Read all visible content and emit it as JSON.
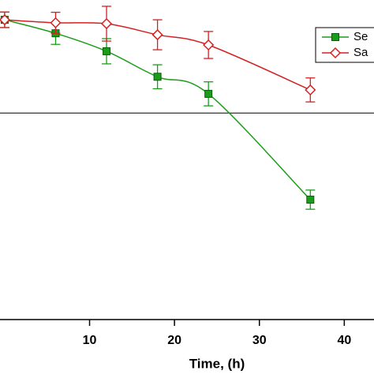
{
  "chart_data": {
    "type": "line",
    "x_label": "Time, (h)",
    "xlim": [
      -0.55,
      43.5
    ],
    "xticks": [
      10,
      20,
      30,
      40
    ],
    "ylim": [
      0,
      106.6
    ],
    "reference_line": 68.9,
    "legend": "top-right",
    "series": [
      {
        "name": "Se",
        "color": "#1a9e1a",
        "marker": "square",
        "x": [
          0,
          6,
          12,
          18,
          24,
          36
        ],
        "values": [
          100,
          95.5,
          89.5,
          81,
          75.3,
          40
        ],
        "errors": [
          2.6,
          3.7,
          4.2,
          4,
          4,
          3.2
        ]
      },
      {
        "name": "Sa",
        "color": "#d42020",
        "marker": "diamond",
        "x": [
          0,
          6,
          12,
          18,
          24,
          36
        ],
        "values": [
          100,
          99,
          98.7,
          95,
          91.6,
          76.6
        ],
        "errors": [
          2.6,
          3.5,
          5.8,
          5,
          4.5,
          4
        ]
      }
    ]
  }
}
